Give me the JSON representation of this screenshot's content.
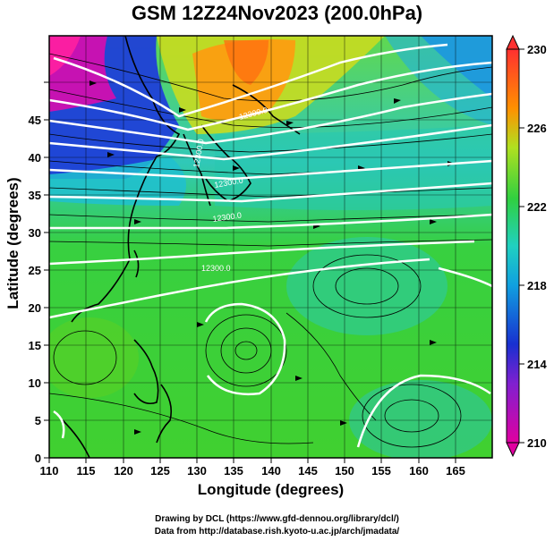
{
  "title": "GSM 12Z24Nov2023 (200.0hPa)",
  "xlabel": "Longitude (degrees)",
  "ylabel": "Latitude  (degrees)",
  "credits": [
    "Drawing by DCL (https://www.gfd-dennou.org/library/dcl/)",
    "Data from http://database.rish.kyoto-u.ac.jp/arch/jmadata/"
  ],
  "x_ticks": [
    "110",
    "115",
    "120",
    "125",
    "130",
    "135",
    "140",
    "145",
    "150",
    "155",
    "160",
    "165"
  ],
  "y_ticks": [
    "0",
    "5",
    "10",
    "15",
    "20",
    "25",
    "30",
    "35",
    "40",
    "45"
  ],
  "colorbar_ticks": [
    "210",
    "214",
    "218",
    "222",
    "226",
    "230"
  ],
  "contour_labels": [
    "12300.0",
    "12300.0",
    "12300.0",
    "12300.0",
    "12300.0"
  ],
  "map": {
    "lon_range": [
      110,
      170
    ],
    "lat_range": [
      0,
      50
    ],
    "variable": "temperature (K) with streamlines and geopotential height contours",
    "colorbar_range": [
      210,
      230
    ],
    "colors": {
      "low": "#e000a0",
      "mid_low": "#1830d0",
      "mid": "#20d0d0",
      "main": "#38d038",
      "high": "#ff8c00",
      "top": "#ff3030",
      "contour": "#ffffff",
      "grid": "#000000"
    }
  }
}
